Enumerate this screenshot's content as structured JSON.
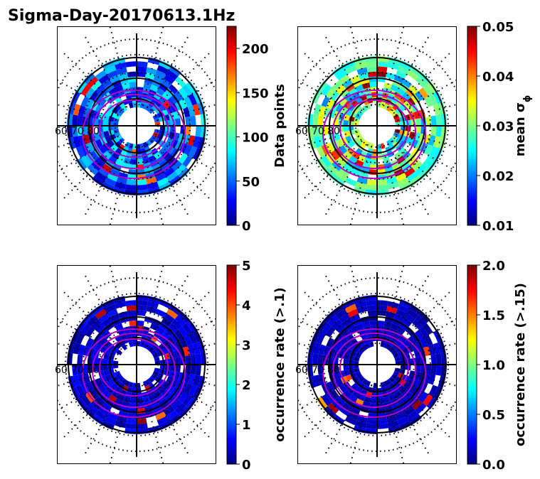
{
  "figure": {
    "title": "Sigma-Day-20170613.1Hz"
  },
  "chart_data": [
    {
      "type": "heatmap",
      "projection": "polar",
      "panel": "top-left",
      "colormap": "jet",
      "lat_labels": [
        "60",
        "70",
        "80"
      ],
      "colorbar": {
        "label": "Data points",
        "range": [
          0,
          225
        ],
        "ticks": [
          "0",
          "50",
          "100",
          "150",
          "200"
        ],
        "tick_values": [
          0,
          50,
          100,
          150,
          200
        ]
      }
    },
    {
      "type": "heatmap",
      "projection": "polar",
      "panel": "top-right",
      "colormap": "jet",
      "lat_labels": [
        "60",
        "70",
        "80"
      ],
      "colorbar": {
        "label": "mean σ",
        "label_sub": "ϕ",
        "range": [
          0.01,
          0.05
        ],
        "ticks": [
          "0.01",
          "0.02",
          "0.03",
          "0.04",
          "0.05"
        ],
        "tick_values": [
          0.01,
          0.02,
          0.03,
          0.04,
          0.05
        ]
      }
    },
    {
      "type": "heatmap",
      "projection": "polar",
      "panel": "bottom-left",
      "colormap": "jet",
      "lat_labels": [
        "60",
        "70",
        "80"
      ],
      "colorbar": {
        "label": "occurrence rate (>.1)",
        "range": [
          0,
          5
        ],
        "ticks": [
          "0",
          "1",
          "2",
          "3",
          "4",
          "5"
        ],
        "tick_values": [
          0,
          1,
          2,
          3,
          4,
          5
        ]
      }
    },
    {
      "type": "heatmap",
      "projection": "polar",
      "panel": "bottom-right",
      "colormap": "jet",
      "lat_labels": [
        "60",
        "70",
        "80"
      ],
      "colorbar": {
        "label": "occurrence rate (>.15)",
        "range": [
          0,
          2
        ],
        "ticks": [
          "0.0",
          "0.5",
          "1.0",
          "1.5",
          "2.0"
        ],
        "tick_values": [
          0,
          0.5,
          1,
          1.5,
          2
        ]
      }
    }
  ]
}
